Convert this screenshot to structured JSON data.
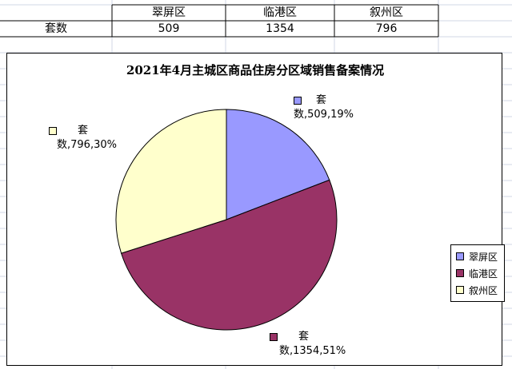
{
  "table": {
    "headers": [
      "翠屏区",
      "临港区",
      "叙州区"
    ],
    "row_label": "套数",
    "values": [
      "509",
      "1354",
      "796"
    ]
  },
  "colors": {
    "翠屏区": "#9999ff",
    "临港区": "#993366",
    "叙州区": "#ffffcc"
  },
  "chart_data": {
    "type": "pie",
    "title": "2021年4月主城区商品住房分区域销售备案情况",
    "series_name": "套数",
    "categories": [
      "翠屏区",
      "临港区",
      "叙州区"
    ],
    "values": [
      509,
      1354,
      796
    ],
    "percents": [
      "19%",
      "51%",
      "30%"
    ],
    "legend": "right",
    "labels": [
      {
        "line1": "套",
        "line2": "数,509,19%"
      },
      {
        "line1": "套",
        "line2": "数,1354,51%"
      },
      {
        "line1": "套",
        "line2": "数,796,30%"
      }
    ]
  }
}
